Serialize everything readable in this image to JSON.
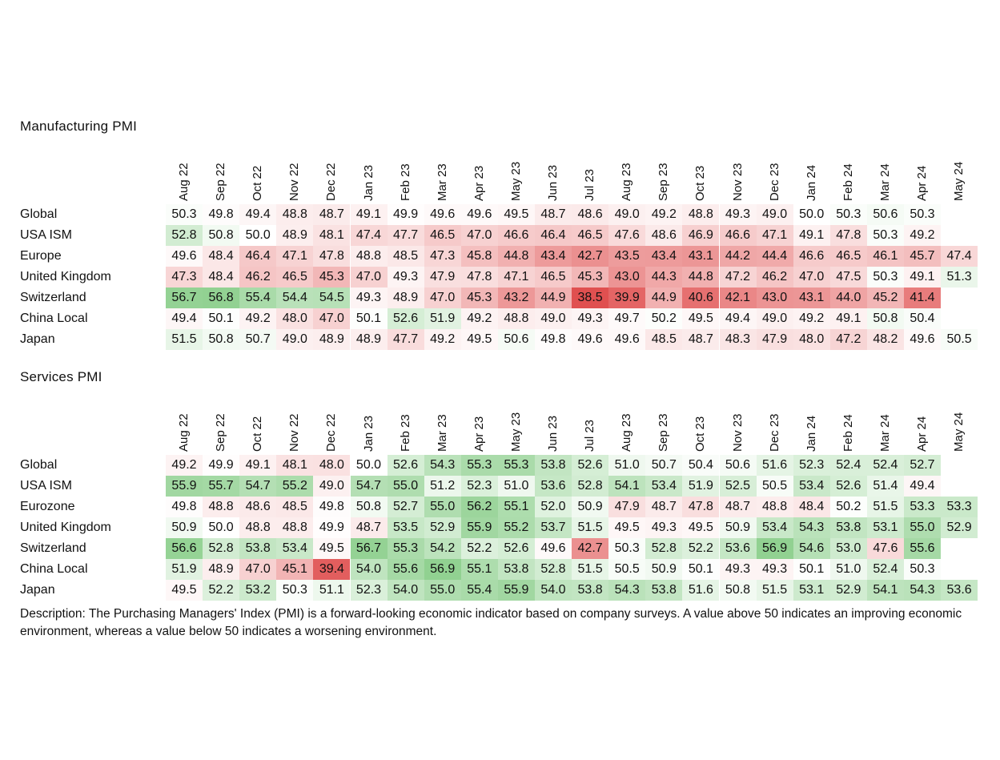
{
  "description": "Description: The Purchasing Managers' Index (PMI) is a forward-looking economic indicator based on company surveys. A value above 50 indicates an improving economic environment, whereas a value below 50 indicates a worsening environment.",
  "colors": {
    "low": "#e05050",
    "mid": "#ffffff",
    "high": "#8fd08f"
  },
  "chart_data": [
    {
      "type": "heatmap",
      "title": "Manufacturing PMI",
      "columns": [
        "Aug 22",
        "Sep 22",
        "Oct 22",
        "Nov 22",
        "Dec 22",
        "Jan 23",
        "Feb 23",
        "Mar 23",
        "Apr 23",
        "May 23",
        "Jun 23",
        "Jul 23",
        "Aug 23",
        "Sep 23",
        "Oct 23",
        "Nov 23",
        "Dec 23",
        "Jan 24",
        "Feb 24",
        "Mar 24",
        "Apr 24",
        "May 24"
      ],
      "center_value": 50,
      "rows": [
        {
          "name": "Global",
          "values": [
            50.3,
            49.8,
            49.4,
            48.8,
            48.7,
            49.1,
            49.9,
            49.6,
            49.6,
            49.5,
            48.7,
            48.6,
            49.0,
            49.2,
            48.8,
            49.3,
            49.0,
            50.0,
            50.3,
            50.6,
            50.3,
            null
          ]
        },
        {
          "name": "USA ISM",
          "values": [
            52.8,
            50.8,
            50.0,
            48.9,
            48.1,
            47.4,
            47.7,
            46.5,
            47.0,
            46.6,
            46.4,
            46.5,
            47.6,
            48.6,
            46.9,
            46.6,
            47.1,
            49.1,
            47.8,
            50.3,
            49.2,
            null
          ]
        },
        {
          "name": "Europe",
          "values": [
            49.6,
            48.4,
            46.4,
            47.1,
            47.8,
            48.8,
            48.5,
            47.3,
            45.8,
            44.8,
            43.4,
            42.7,
            43.5,
            43.4,
            43.1,
            44.2,
            44.4,
            46.6,
            46.5,
            46.1,
            45.7,
            47.4
          ]
        },
        {
          "name": "United Kingdom",
          "values": [
            47.3,
            48.4,
            46.2,
            46.5,
            45.3,
            47.0,
            49.3,
            47.9,
            47.8,
            47.1,
            46.5,
            45.3,
            43.0,
            44.3,
            44.8,
            47.2,
            46.2,
            47.0,
            47.5,
            50.3,
            49.1,
            51.3
          ]
        },
        {
          "name": "Switzerland",
          "values": [
            56.7,
            56.8,
            55.4,
            54.4,
            54.5,
            49.3,
            48.9,
            47.0,
            45.3,
            43.2,
            44.9,
            38.5,
            39.9,
            44.9,
            40.6,
            42.1,
            43.0,
            43.1,
            44.0,
            45.2,
            41.4,
            null
          ]
        },
        {
          "name": "China Local",
          "values": [
            49.4,
            50.1,
            49.2,
            48.0,
            47.0,
            50.1,
            52.6,
            51.9,
            49.2,
            48.8,
            49.0,
            49.3,
            49.7,
            50.2,
            49.5,
            49.4,
            49.0,
            49.2,
            49.1,
            50.8,
            50.4,
            null
          ]
        },
        {
          "name": "Japan",
          "values": [
            51.5,
            50.8,
            50.7,
            49.0,
            48.9,
            48.9,
            47.7,
            49.2,
            49.5,
            50.6,
            49.8,
            49.6,
            49.6,
            48.5,
            48.7,
            48.3,
            47.9,
            48.0,
            47.2,
            48.2,
            49.6,
            50.5
          ]
        }
      ]
    },
    {
      "type": "heatmap",
      "title": "Services PMI",
      "columns": [
        "Aug 22",
        "Sep 22",
        "Oct 22",
        "Nov 22",
        "Dec 22",
        "Jan 23",
        "Feb 23",
        "Mar 23",
        "Apr 23",
        "May 23",
        "Jun 23",
        "Jul 23",
        "Aug 23",
        "Sep 23",
        "Oct 23",
        "Nov 23",
        "Dec 23",
        "Jan 24",
        "Feb 24",
        "Mar 24",
        "Apr 24",
        "May 24"
      ],
      "center_value": 50,
      "rows": [
        {
          "name": "Global",
          "values": [
            49.2,
            49.9,
            49.1,
            48.1,
            48.0,
            50.0,
            52.6,
            54.3,
            55.3,
            55.3,
            53.8,
            52.6,
            51.0,
            50.7,
            50.4,
            50.6,
            51.6,
            52.3,
            52.4,
            52.4,
            52.7,
            null
          ]
        },
        {
          "name": "USA ISM",
          "values": [
            55.9,
            55.7,
            54.7,
            55.2,
            49.0,
            54.7,
            55.0,
            51.2,
            52.3,
            51.0,
            53.6,
            52.8,
            54.1,
            53.4,
            51.9,
            52.5,
            50.5,
            53.4,
            52.6,
            51.4,
            49.4,
            null
          ]
        },
        {
          "name": "Eurozone",
          "values": [
            49.8,
            48.8,
            48.6,
            48.5,
            49.8,
            50.8,
            52.7,
            55.0,
            56.2,
            55.1,
            52.0,
            50.9,
            47.9,
            48.7,
            47.8,
            48.7,
            48.8,
            48.4,
            50.2,
            51.5,
            53.3,
            53.3
          ]
        },
        {
          "name": "United Kingdom",
          "values": [
            50.9,
            50.0,
            48.8,
            48.8,
            49.9,
            48.7,
            53.5,
            52.9,
            55.9,
            55.2,
            53.7,
            51.5,
            49.5,
            49.3,
            49.5,
            50.9,
            53.4,
            54.3,
            53.8,
            53.1,
            55.0,
            52.9
          ]
        },
        {
          "name": "Switzerland",
          "values": [
            56.6,
            52.8,
            53.8,
            53.4,
            49.5,
            56.7,
            55.3,
            54.2,
            52.2,
            52.6,
            49.6,
            42.7,
            50.3,
            52.8,
            52.2,
            53.6,
            56.9,
            54.6,
            53.0,
            47.6,
            55.6,
            null
          ]
        },
        {
          "name": "China Local",
          "values": [
            51.9,
            48.9,
            47.0,
            45.1,
            39.4,
            54.0,
            55.6,
            56.9,
            55.1,
            53.8,
            52.8,
            51.5,
            50.5,
            50.9,
            50.1,
            49.3,
            49.3,
            50.1,
            51.0,
            52.4,
            50.3,
            null
          ]
        },
        {
          "name": "Japan",
          "values": [
            49.5,
            52.2,
            53.2,
            50.3,
            51.1,
            52.3,
            54.0,
            55.0,
            55.4,
            55.9,
            54.0,
            53.8,
            54.3,
            53.8,
            51.6,
            50.8,
            51.5,
            53.1,
            52.9,
            54.1,
            54.3,
            53.6
          ]
        }
      ]
    }
  ]
}
